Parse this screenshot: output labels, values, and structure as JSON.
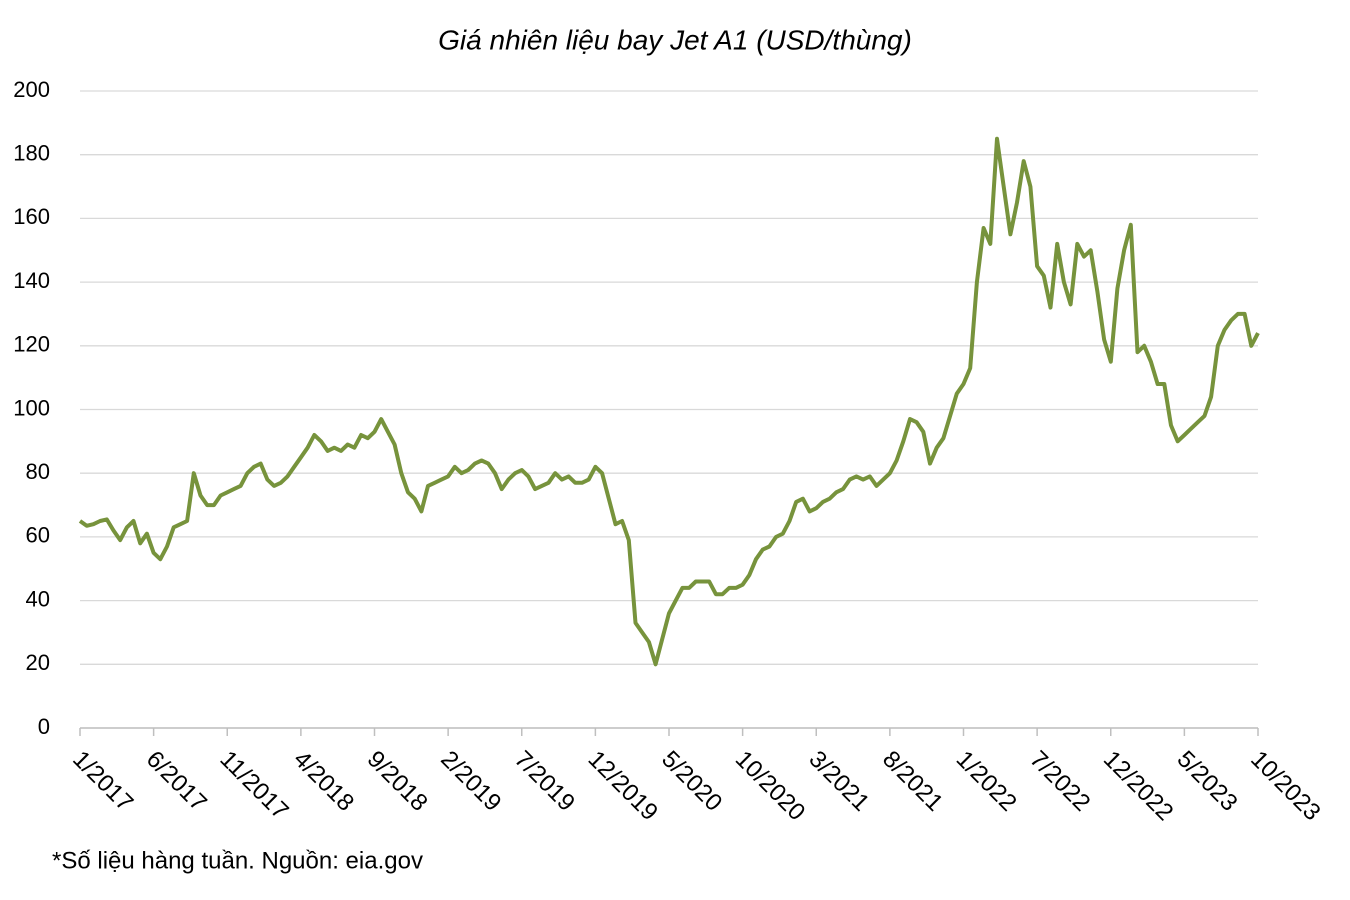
{
  "chart_data": {
    "type": "line",
    "title": "Giá nhiên liệu bay Jet A1 (USD/thùng)",
    "note": "*Số liệu hàng tuần. Nguồn: eia.gov",
    "categories": [
      "1/2017",
      null,
      null,
      null,
      null,
      null,
      null,
      null,
      null,
      null,
      null,
      "6/2017",
      null,
      null,
      null,
      null,
      null,
      null,
      null,
      null,
      null,
      null,
      "11/2017",
      null,
      null,
      null,
      null,
      null,
      null,
      null,
      null,
      null,
      null,
      "4/2018",
      null,
      null,
      null,
      null,
      null,
      null,
      null,
      null,
      null,
      null,
      "9/2018",
      null,
      null,
      null,
      null,
      null,
      null,
      null,
      null,
      null,
      null,
      "2/2019",
      null,
      null,
      null,
      null,
      null,
      null,
      null,
      null,
      null,
      null,
      "7/2019",
      null,
      null,
      null,
      null,
      null,
      null,
      null,
      null,
      null,
      null,
      "12/2019",
      null,
      null,
      null,
      null,
      null,
      null,
      null,
      null,
      null,
      null,
      "5/2020",
      null,
      null,
      null,
      null,
      null,
      null,
      null,
      null,
      null,
      null,
      "10/2020",
      null,
      null,
      null,
      null,
      null,
      null,
      null,
      null,
      null,
      null,
      "3/2021",
      null,
      null,
      null,
      null,
      null,
      null,
      null,
      null,
      null,
      null,
      "8/2021",
      null,
      null,
      null,
      null,
      null,
      null,
      null,
      null,
      null,
      null,
      "1/2022",
      null,
      null,
      null,
      null,
      null,
      null,
      null,
      null,
      null,
      null,
      "7/2022",
      null,
      null,
      null,
      null,
      null,
      null,
      null,
      null,
      null,
      null,
      "12/2022",
      null,
      null,
      null,
      null,
      null,
      null,
      null,
      null,
      null,
      null,
      "5/2023",
      null,
      null,
      null,
      null,
      null,
      null,
      null,
      null,
      null,
      null,
      "10/2023"
    ],
    "values": [
      65,
      63.5,
      64,
      65,
      65.5,
      62,
      59,
      63,
      65,
      58,
      61,
      55,
      53,
      57,
      63,
      64,
      65,
      80,
      73,
      70,
      70,
      73,
      74,
      75,
      76,
      80,
      82,
      83,
      78,
      76,
      77,
      79,
      82,
      85,
      88,
      92,
      90,
      87,
      88,
      87,
      89,
      88,
      92,
      91,
      93,
      97,
      93,
      89,
      80,
      74,
      72,
      68,
      76,
      77,
      78,
      79,
      82,
      80,
      81,
      83,
      84,
      83,
      80,
      75,
      78,
      80,
      81,
      79,
      75,
      76,
      77,
      80,
      78,
      79,
      77,
      77,
      78,
      82,
      80,
      72,
      64,
      65,
      59,
      33,
      30,
      27,
      20,
      28,
      36,
      40,
      44,
      44,
      46,
      46,
      46,
      42,
      42,
      44,
      44,
      45,
      48,
      53,
      56,
      57,
      60,
      61,
      65,
      71,
      72,
      68,
      69,
      71,
      72,
      74,
      75,
      78,
      79,
      78,
      79,
      76,
      78,
      80,
      84,
      90,
      97,
      96,
      93,
      83,
      88,
      91,
      98,
      105,
      108,
      113,
      140,
      157,
      152,
      185,
      170,
      155,
      165,
      178,
      170,
      145,
      142,
      132,
      152,
      140,
      133,
      152,
      148,
      150,
      137,
      122,
      115,
      138,
      150,
      158,
      118,
      120,
      115,
      108,
      108,
      95,
      90,
      92,
      94,
      96,
      98,
      104,
      120,
      125,
      128,
      130,
      130,
      120,
      124
    ],
    "color": "#77933c",
    "ylim": [
      0,
      200
    ],
    "yticks": [
      0,
      20,
      40,
      60,
      80,
      100,
      120,
      140,
      160,
      180,
      200
    ],
    "grid": true
  }
}
